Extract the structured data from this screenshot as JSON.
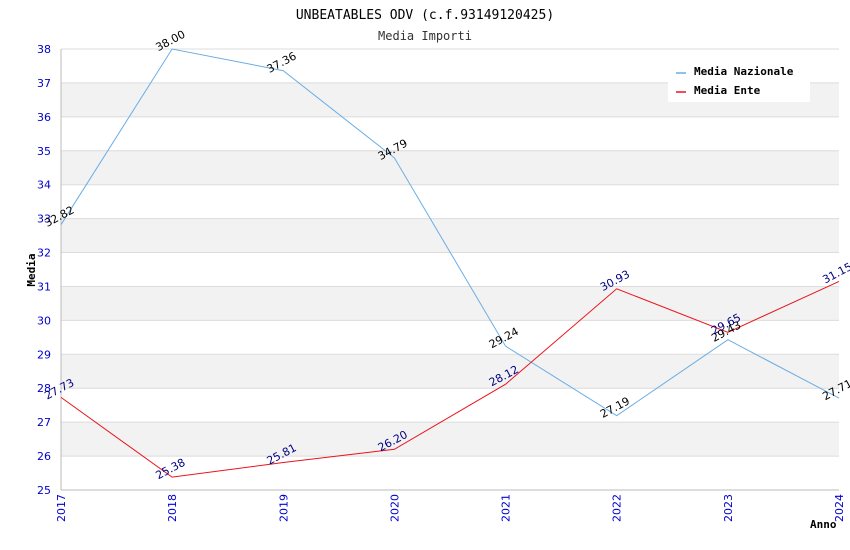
{
  "chart_data": {
    "type": "line",
    "title": "UNBEATABLES ODV (c.f.93149120425)",
    "subtitle": "Media Importi",
    "xlabel": "Anno",
    "ylabel": "Media",
    "categories": [
      "2017",
      "2018",
      "2019",
      "2020",
      "2021",
      "2022",
      "2023",
      "2024"
    ],
    "ylim": [
      25,
      38
    ],
    "yticks": [
      25,
      26,
      27,
      28,
      29,
      30,
      31,
      32,
      33,
      34,
      35,
      36,
      37,
      38
    ],
    "grid": true,
    "legend_position": "top-right",
    "series": [
      {
        "name": "Media Nazionale",
        "color": "#6aade4",
        "label_color": "#000000",
        "values": [
          32.82,
          38.0,
          37.36,
          34.79,
          29.24,
          27.19,
          29.43,
          27.71
        ],
        "labels": [
          "32.82",
          "38.00",
          "37.36",
          "34.79",
          "29.24",
          "27.19",
          "29.43",
          "27.71"
        ]
      },
      {
        "name": "Media Ente",
        "color": "#e8141a",
        "label_color": "#000080",
        "values": [
          27.73,
          25.38,
          25.81,
          26.2,
          28.12,
          30.93,
          29.65,
          31.15
        ],
        "labels": [
          "27.73",
          "25.38",
          "25.81",
          "26.20",
          "28.12",
          "30.93",
          "29.65",
          "31.15"
        ]
      }
    ]
  }
}
